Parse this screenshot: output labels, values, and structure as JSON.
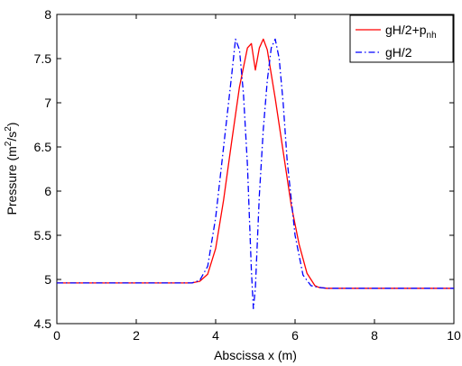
{
  "chart_data": {
    "type": "line",
    "xlabel": "Abscissa x (m)",
    "ylabel": {
      "prefix": "Pressure (m",
      "sup1": "2",
      "mid": "/s",
      "sup2": "2",
      "suffix": ")"
    },
    "xlim": [
      0,
      10
    ],
    "ylim": [
      4.5,
      8
    ],
    "xticks": [
      0,
      2,
      4,
      6,
      8,
      10
    ],
    "yticks": [
      4.5,
      5,
      5.5,
      6,
      6.5,
      7,
      7.5,
      8
    ],
    "xtick_labels": [
      "0",
      "2",
      "4",
      "6",
      "8",
      "10"
    ],
    "ytick_labels": [
      "4.5",
      "5",
      "5.5",
      "6",
      "6.5",
      "7",
      "7.5",
      "8"
    ],
    "grid": false,
    "legend_position": "top-right",
    "series": [
      {
        "name": "gH/2+p",
        "name_sub": "nh",
        "color": "#ff0000",
        "style": "solid",
        "x": [
          0,
          3.4,
          3.6,
          3.8,
          4.0,
          4.2,
          4.4,
          4.6,
          4.8,
          4.9,
          5.0,
          5.1,
          5.2,
          5.3,
          5.5,
          5.7,
          5.9,
          6.1,
          6.3,
          6.5,
          6.6,
          6.8,
          10
        ],
        "y": [
          4.96,
          4.96,
          4.98,
          5.06,
          5.35,
          5.9,
          6.55,
          7.18,
          7.62,
          7.67,
          7.37,
          7.62,
          7.72,
          7.6,
          7.05,
          6.45,
          5.85,
          5.4,
          5.07,
          4.93,
          4.91,
          4.9,
          4.9
        ]
      },
      {
        "name": "gH/2",
        "color": "#0000ff",
        "style": "dashdot",
        "x": [
          0,
          3.4,
          3.6,
          3.8,
          4.0,
          4.2,
          4.4,
          4.5,
          4.6,
          4.7,
          4.8,
          4.9,
          4.95,
          5.0,
          5.1,
          5.2,
          5.3,
          5.4,
          5.5,
          5.6,
          5.7,
          5.8,
          6.0,
          6.2,
          6.4,
          6.6,
          6.8,
          10
        ],
        "y": [
          4.96,
          4.96,
          4.99,
          5.15,
          5.7,
          6.5,
          7.3,
          7.72,
          7.6,
          7.1,
          6.3,
          5.1,
          4.67,
          4.9,
          5.95,
          6.7,
          7.25,
          7.62,
          7.72,
          7.5,
          7.0,
          6.35,
          5.5,
          5.05,
          4.93,
          4.91,
          4.9,
          4.9
        ]
      }
    ]
  }
}
